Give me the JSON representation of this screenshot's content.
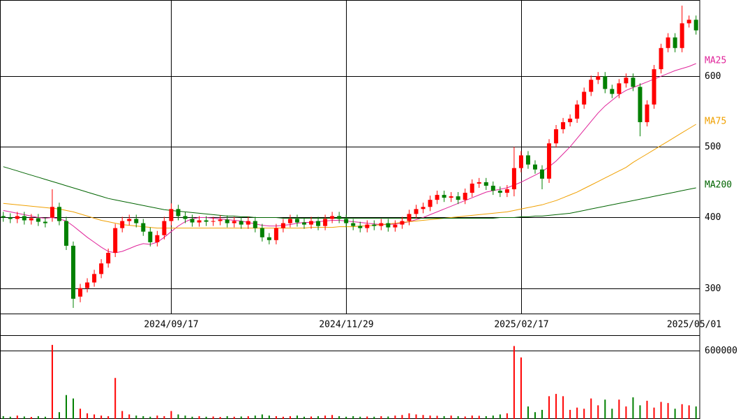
{
  "chart_data": {
    "type": "candlestick",
    "categories": [
      null,
      null,
      null,
      null,
      null,
      null,
      null,
      null,
      null,
      null,
      null,
      null,
      null,
      null,
      null,
      null,
      null,
      null,
      null,
      null,
      null,
      null,
      null,
      null,
      "2024/09/17",
      null,
      null,
      null,
      null,
      null,
      null,
      null,
      null,
      null,
      null,
      null,
      null,
      null,
      null,
      null,
      null,
      null,
      null,
      null,
      null,
      null,
      null,
      null,
      null,
      "2024/11/29",
      null,
      null,
      null,
      null,
      null,
      null,
      null,
      null,
      null,
      null,
      null,
      null,
      null,
      null,
      null,
      null,
      null,
      null,
      null,
      null,
      null,
      null,
      null,
      null,
      "2025/02/17",
      null,
      null,
      null,
      null,
      null,
      null,
      null,
      null,
      null,
      null,
      null,
      null,
      null,
      null,
      null,
      null,
      null,
      null,
      null,
      null,
      null,
      null,
      null,
      null,
      "2025/05/01"
    ],
    "open": [
      402,
      400,
      398,
      402,
      396,
      399,
      394,
      400,
      415,
      395,
      360,
      288,
      300,
      308,
      320,
      335,
      350,
      385,
      395,
      398,
      392,
      380,
      365,
      375,
      395,
      412,
      402,
      398,
      393,
      396,
      394,
      395,
      397,
      392,
      395,
      390,
      395,
      385,
      372,
      368,
      385,
      392,
      398,
      393,
      390,
      395,
      388,
      398,
      402,
      398,
      392,
      388,
      385,
      390,
      388,
      392,
      386,
      390,
      395,
      405,
      412,
      415,
      425,
      432,
      428,
      430,
      425,
      435,
      448,
      450,
      445,
      438,
      435,
      440,
      470,
      488,
      475,
      468,
      455,
      505,
      525,
      535,
      540,
      560,
      578,
      595,
      600,
      582,
      575,
      590,
      598,
      585,
      535,
      560,
      610,
      640,
      655,
      640,
      675,
      680
    ],
    "high": [
      408,
      406,
      408,
      408,
      405,
      405,
      400,
      440,
      421,
      401,
      366,
      306,
      314,
      326,
      341,
      356,
      391,
      401,
      404,
      404,
      398,
      386,
      381,
      401,
      420,
      418,
      408,
      404,
      402,
      402,
      401,
      403,
      403,
      401,
      401,
      401,
      401,
      391,
      378,
      391,
      398,
      404,
      404,
      399,
      401,
      401,
      404,
      408,
      408,
      404,
      398,
      394,
      396,
      396,
      398,
      398,
      396,
      401,
      411,
      418,
      421,
      431,
      438,
      438,
      436,
      436,
      441,
      454,
      456,
      456,
      451,
      444,
      446,
      500,
      494,
      494,
      481,
      474,
      511,
      531,
      541,
      546,
      566,
      584,
      601,
      606,
      606,
      588,
      596,
      604,
      604,
      590,
      566,
      616,
      646,
      661,
      661,
      700,
      686,
      686
    ],
    "low": [
      394,
      392,
      392,
      390,
      390,
      388,
      386,
      394,
      389,
      354,
      272,
      280,
      294,
      302,
      314,
      329,
      344,
      379,
      389,
      386,
      374,
      359,
      359,
      369,
      389,
      396,
      392,
      387,
      387,
      388,
      388,
      389,
      386,
      386,
      384,
      384,
      379,
      366,
      362,
      362,
      379,
      386,
      387,
      384,
      384,
      382,
      382,
      392,
      392,
      386,
      382,
      379,
      379,
      382,
      382,
      380,
      380,
      384,
      389,
      399,
      406,
      409,
      419,
      422,
      422,
      419,
      419,
      429,
      442,
      439,
      432,
      429,
      429,
      430,
      464,
      469,
      462,
      440,
      449,
      499,
      519,
      529,
      534,
      554,
      572,
      589,
      576,
      569,
      569,
      584,
      579,
      515,
      529,
      554,
      604,
      634,
      634,
      634,
      669,
      659
    ],
    "close": [
      400,
      398,
      402,
      396,
      399,
      394,
      392,
      415,
      395,
      360,
      285,
      300,
      308,
      320,
      335,
      350,
      385,
      395,
      398,
      392,
      380,
      365,
      375,
      395,
      412,
      402,
      398,
      393,
      396,
      394,
      395,
      397,
      392,
      395,
      390,
      395,
      385,
      372,
      368,
      385,
      392,
      398,
      393,
      390,
      395,
      388,
      398,
      402,
      398,
      392,
      388,
      385,
      390,
      388,
      392,
      386,
      390,
      395,
      405,
      412,
      415,
      425,
      432,
      428,
      430,
      425,
      435,
      448,
      450,
      445,
      438,
      435,
      440,
      470,
      488,
      475,
      468,
      455,
      505,
      525,
      535,
      540,
      560,
      578,
      595,
      600,
      582,
      575,
      590,
      598,
      585,
      535,
      560,
      610,
      640,
      655,
      640,
      675,
      680,
      665
    ],
    "up_color": "#ff0000",
    "down_color": "#008000",
    "ylim": [
      264,
      708
    ],
    "yticks": [
      300,
      400,
      500,
      600
    ],
    "grid": true,
    "series": [
      {
        "name": "MA25",
        "color": "#e0249a",
        "values": [
          410,
          408,
          406,
          404,
          402,
          400,
          399,
          400,
          398,
          395,
          388,
          380,
          372,
          365,
          358,
          352,
          350,
          352,
          356,
          360,
          363,
          362,
          365,
          372,
          380,
          388,
          394,
          398,
          400,
          400,
          399,
          398,
          397,
          396,
          395,
          393,
          391,
          389,
          388,
          388,
          389,
          390,
          392,
          393,
          393,
          394,
          395,
          396,
          396,
          395,
          394,
          393,
          392,
          391,
          390,
          390,
          391,
          392,
          394,
          397,
          400,
          404,
          408,
          412,
          416,
          420,
          424,
          428,
          432,
          436,
          438,
          440,
          442,
          446,
          450,
          455,
          460,
          465,
          472,
          480,
          490,
          500,
          512,
          524,
          536,
          548,
          558,
          566,
          574,
          580,
          584,
          588,
          592,
          596,
          600,
          604,
          608,
          611,
          614,
          618
        ]
      },
      {
        "name": "MA75",
        "color": "#f0a000",
        "values": [
          420,
          419,
          418,
          417,
          416,
          415,
          414,
          413,
          412,
          410,
          408,
          405,
          402,
          399,
          396,
          394,
          392,
          390,
          389,
          388,
          387,
          386,
          385,
          385,
          385,
          385,
          385,
          385,
          385,
          385,
          385,
          385,
          385,
          385,
          385,
          385,
          385,
          385,
          385,
          385,
          385,
          385,
          385,
          385,
          386,
          386,
          386,
          386,
          387,
          387,
          387,
          388,
          388,
          389,
          390,
          391,
          392,
          393,
          394,
          395,
          396,
          397,
          398,
          399,
          400,
          401,
          402,
          403,
          404,
          405,
          406,
          407,
          408,
          410,
          412,
          414,
          416,
          418,
          421,
          424,
          428,
          432,
          436,
          441,
          446,
          451,
          456,
          461,
          466,
          471,
          478,
          484,
          490,
          496,
          502,
          508,
          514,
          520,
          526,
          532
        ]
      },
      {
        "name": "MA200",
        "color": "#006400",
        "values": [
          472,
          469,
          466,
          463,
          460,
          457,
          454,
          451,
          448,
          445,
          442,
          439,
          436,
          433,
          430,
          427,
          425,
          423,
          421,
          419,
          417,
          415,
          413,
          411,
          410,
          409,
          408,
          407,
          406,
          405,
          404,
          403,
          402,
          402,
          401,
          401,
          400,
          400,
          400,
          400,
          399,
          399,
          399,
          399,
          399,
          399,
          399,
          399,
          399,
          399,
          399,
          399,
          399,
          399,
          399,
          399,
          399,
          399,
          399,
          399,
          399,
          399,
          399,
          399,
          399,
          399,
          399,
          399,
          399,
          399,
          399,
          400,
          400,
          400,
          401,
          401,
          402,
          402,
          403,
          404,
          405,
          406,
          408,
          410,
          412,
          414,
          416,
          418,
          420,
          422,
          424,
          426,
          428,
          430,
          432,
          434,
          436,
          438,
          440,
          442
        ]
      }
    ],
    "volume": {
      "values": [
        25000,
        20000,
        30000,
        22000,
        18000,
        25000,
        20000,
        650000,
        60000,
        210000,
        180000,
        90000,
        50000,
        40000,
        30000,
        25000,
        360000,
        70000,
        40000,
        30000,
        25000,
        20000,
        30000,
        25000,
        70000,
        40000,
        30000,
        20000,
        25000,
        20000,
        22000,
        18000,
        25000,
        20000,
        22000,
        25000,
        30000,
        40000,
        30000,
        25000,
        20000,
        25000,
        30000,
        20000,
        22000,
        25000,
        30000,
        35000,
        25000,
        20000,
        25000,
        20000,
        22000,
        20000,
        25000,
        22000,
        30000,
        35000,
        50000,
        40000,
        35000,
        30000,
        28000,
        25000,
        30000,
        25000,
        22000,
        30000,
        28000,
        25000,
        30000,
        40000,
        50000,
        640000,
        540000,
        110000,
        60000,
        80000,
        200000,
        220000,
        200000,
        80000,
        100000,
        90000,
        180000,
        120000,
        170000,
        90000,
        170000,
        110000,
        190000,
        120000,
        160000,
        100000,
        150000,
        140000,
        90000,
        130000,
        120000,
        110000
      ],
      "ylim": [
        0,
        735000
      ],
      "yticks": [
        600000
      ]
    }
  }
}
